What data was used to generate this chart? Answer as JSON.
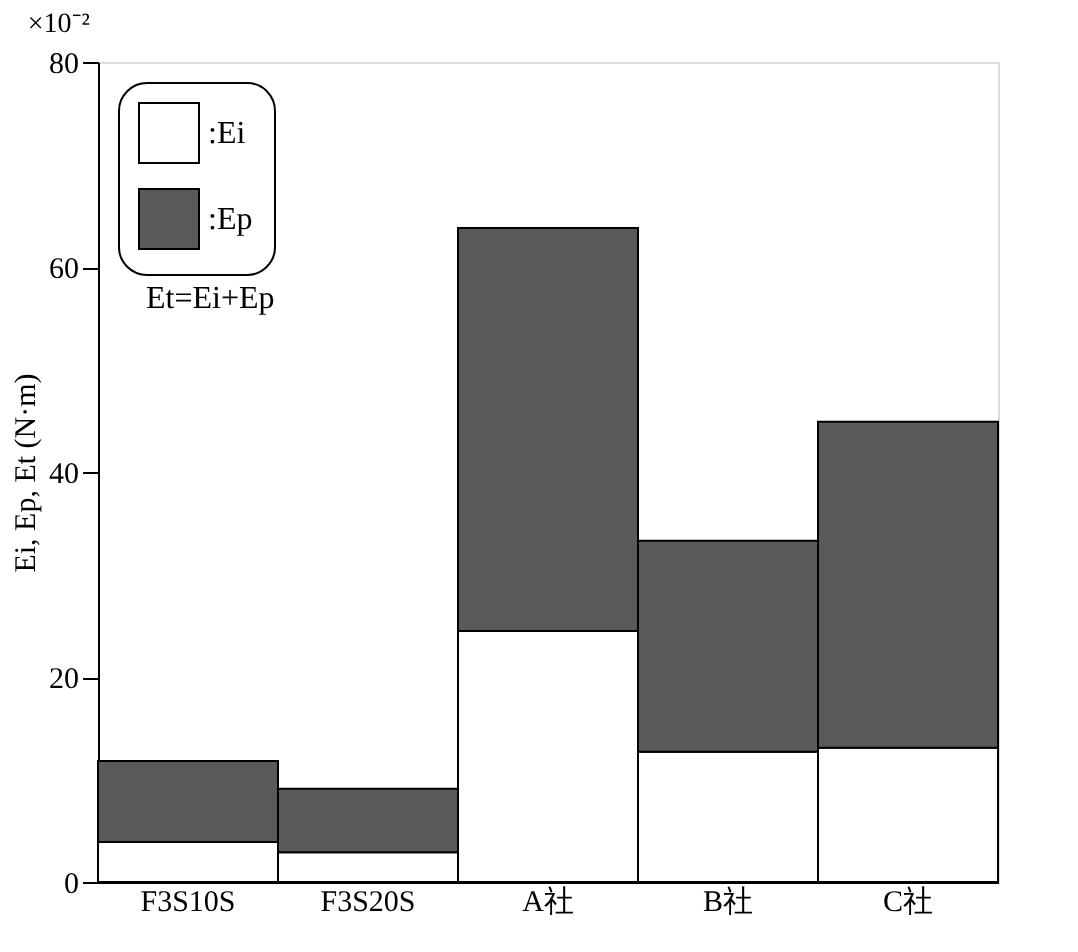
{
  "chart_data": {
    "type": "bar",
    "stacked": true,
    "categories": [
      "F3S10S",
      "F3S20S",
      "A社",
      "B社",
      "C社"
    ],
    "series": [
      {
        "name": ":Ei",
        "color": "#ffffff",
        "values": [
          3.9,
          2.9,
          24.5,
          12.7,
          13.1
        ]
      },
      {
        "name": ":Ep",
        "color": "#5a5a5a",
        "values": [
          7.9,
          6.2,
          39.3,
          20.6,
          31.8
        ]
      }
    ],
    "ylabel": "Ei, Ep, Et (N·m)",
    "ylim": [
      0,
      80
    ],
    "yticks": [
      0,
      20,
      40,
      60,
      80
    ],
    "annotations": [
      "×10⁻²",
      "Et=Ei+Ep"
    ],
    "legend": "top left",
    "grid": false
  }
}
